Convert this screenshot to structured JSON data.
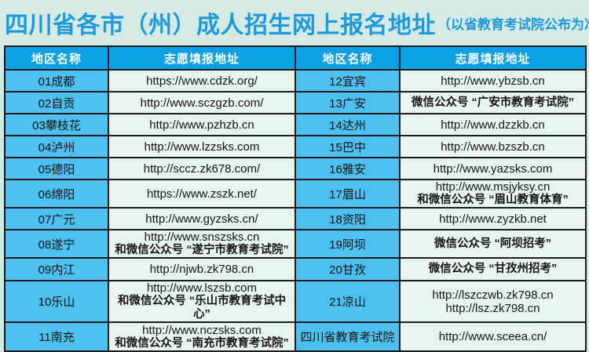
{
  "title": {
    "main": "四川省各市（州）成人招生网上报名地址",
    "note": "（以省教育考试院公布为准）"
  },
  "colors": {
    "page_background": "#d6eae5",
    "title_blue": "#1e9ada",
    "header_blue": "#0b9fe3",
    "region_cell_blue": "#4dc0ef",
    "address_cell_mint": "#e9f4f0",
    "border_dark": "#1c1c1c",
    "header_text": "#ffffff",
    "cell_text": "#141414"
  },
  "table": {
    "headers": [
      "地区名称",
      "志愿填报地址",
      "地区名称",
      "志愿填报地址"
    ],
    "rows": [
      {
        "l": {
          "name": "01成都",
          "url1": "https://www.cdzk.org/"
        },
        "r": {
          "name": "12宜宾",
          "url1": "http://www.ybzsb.cn"
        }
      },
      {
        "l": {
          "name": "02自贡",
          "url1": "http://www.sczgzb.com/"
        },
        "r": {
          "name": "13广安",
          "cn": "微信公众号 “广安市教育考试院”"
        }
      },
      {
        "l": {
          "name": "03攀枝花",
          "url1": "http://www.pzhzb.cn"
        },
        "r": {
          "name": "14达州",
          "url1": "http://www.dzzkb.cn"
        }
      },
      {
        "l": {
          "name": "04泸州",
          "url1": "http://www.lzzsks.com"
        },
        "r": {
          "name": "15巴中",
          "url1": "http://www.bzszb.cn"
        }
      },
      {
        "l": {
          "name": "05德阳",
          "url1": "http://sccz.zk678.com/"
        },
        "r": {
          "name": "16雅安",
          "url1": "http://www.yazsks.com"
        }
      },
      {
        "l": {
          "name": "06绵阳",
          "url1": "https://www.zszk.net/"
        },
        "r": {
          "name": "17眉山",
          "url1": "http://www.msjyksy.cn",
          "cn": "和微信公众号 “眉山教育体育”"
        }
      },
      {
        "l": {
          "name": "07广元",
          "url1": "http://www.gyzsks.cn/"
        },
        "r": {
          "name": "18资阳",
          "url1": "http://www.zyzkb.net"
        }
      },
      {
        "l": {
          "name": "08遂宁",
          "url1": "http://www.snszsks.cn",
          "cn": "和微信公众号 “遂宁市教育考试院”"
        },
        "r": {
          "name": "19阿坝",
          "cn": "微信公众号 “阿坝招考”"
        }
      },
      {
        "l": {
          "name": "09内江",
          "url1": "http://njwb.zk798.cn"
        },
        "r": {
          "name": "20甘孜",
          "cn": "微信公众号 “甘孜州招考”"
        }
      },
      {
        "l": {
          "name": "10乐山",
          "url1": "http://www.lszsb.com",
          "cn": "和微信公众号 “乐山市教育考试中心”"
        },
        "r": {
          "name": "21凉山",
          "url1": "http://lszczwb.zk798.cn",
          "url2": "http://lsz.zk798.cn"
        }
      },
      {
        "l": {
          "name": "11南充",
          "url1": "http://www.nczsks.com",
          "cn": "和微信公众号 “南充市教育考试院”"
        },
        "r": {
          "name": "四川省教育考试院",
          "url1": "http://www.sceea.cn/"
        }
      }
    ]
  }
}
